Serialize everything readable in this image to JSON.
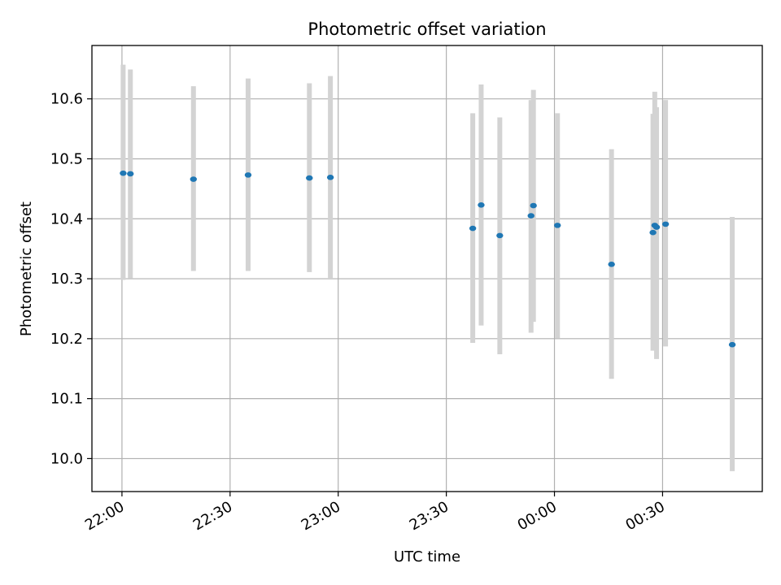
{
  "chart_data": {
    "type": "scatter",
    "title": "Photometric offset variation",
    "xlabel": "UTC time",
    "ylabel": "Photometric offset",
    "x_ticks": [
      "22:00",
      "22:30",
      "23:00",
      "23:30",
      "00:00",
      "00:30"
    ],
    "y_ticks": [
      "10.0",
      "10.1",
      "10.2",
      "10.3",
      "10.4",
      "10.5",
      "10.6"
    ],
    "xlim": [
      "2000-01-01T21:51:40",
      "2000-01-02T00:57:40"
    ],
    "ylim": [
      9.945,
      10.689
    ],
    "grid": true,
    "point_color": "#1f77b4",
    "errorbar_color": "#d3d3d3",
    "points": [
      {
        "x": "2000-01-01T22:00:20",
        "y": 10.476,
        "ymin": 10.298,
        "ymax": 10.657
      },
      {
        "x": "2000-01-01T22:02:20",
        "y": 10.475,
        "ymin": 10.301,
        "ymax": 10.649
      },
      {
        "x": "2000-01-01T22:19:50",
        "y": 10.466,
        "ymin": 10.313,
        "ymax": 10.621
      },
      {
        "x": "2000-01-01T22:35:00",
        "y": 10.473,
        "ymin": 10.313,
        "ymax": 10.634
      },
      {
        "x": "2000-01-01T22:52:00",
        "y": 10.468,
        "ymin": 10.311,
        "ymax": 10.626
      },
      {
        "x": "2000-01-01T22:57:50",
        "y": 10.469,
        "ymin": 10.3,
        "ymax": 10.638
      },
      {
        "x": "2000-01-01T23:37:20",
        "y": 10.384,
        "ymin": 10.193,
        "ymax": 10.576
      },
      {
        "x": "2000-01-01T23:39:40",
        "y": 10.423,
        "ymin": 10.222,
        "ymax": 10.624
      },
      {
        "x": "2000-01-01T23:44:50",
        "y": 10.372,
        "ymin": 10.174,
        "ymax": 10.569
      },
      {
        "x": "2000-01-01T23:53:30",
        "y": 10.405,
        "ymin": 10.21,
        "ymax": 10.598
      },
      {
        "x": "2000-01-01T23:54:10",
        "y": 10.422,
        "ymin": 10.228,
        "ymax": 10.615
      },
      {
        "x": "2000-01-02T00:00:50",
        "y": 10.389,
        "ymin": 10.201,
        "ymax": 10.576
      },
      {
        "x": "2000-01-02T00:15:50",
        "y": 10.324,
        "ymin": 10.133,
        "ymax": 10.516
      },
      {
        "x": "2000-01-02T00:27:20",
        "y": 10.377,
        "ymin": 10.18,
        "ymax": 10.575
      },
      {
        "x": "2000-01-02T00:27:50",
        "y": 10.389,
        "ymin": 10.19,
        "ymax": 10.612
      },
      {
        "x": "2000-01-02T00:28:20",
        "y": 10.386,
        "ymin": 10.166,
        "ymax": 10.586
      },
      {
        "x": "2000-01-02T00:30:50",
        "y": 10.391,
        "ymin": 10.187,
        "ymax": 10.598
      },
      {
        "x": "2000-01-02T00:49:20",
        "y": 10.19,
        "ymin": 9.979,
        "ymax": 10.403
      }
    ]
  }
}
